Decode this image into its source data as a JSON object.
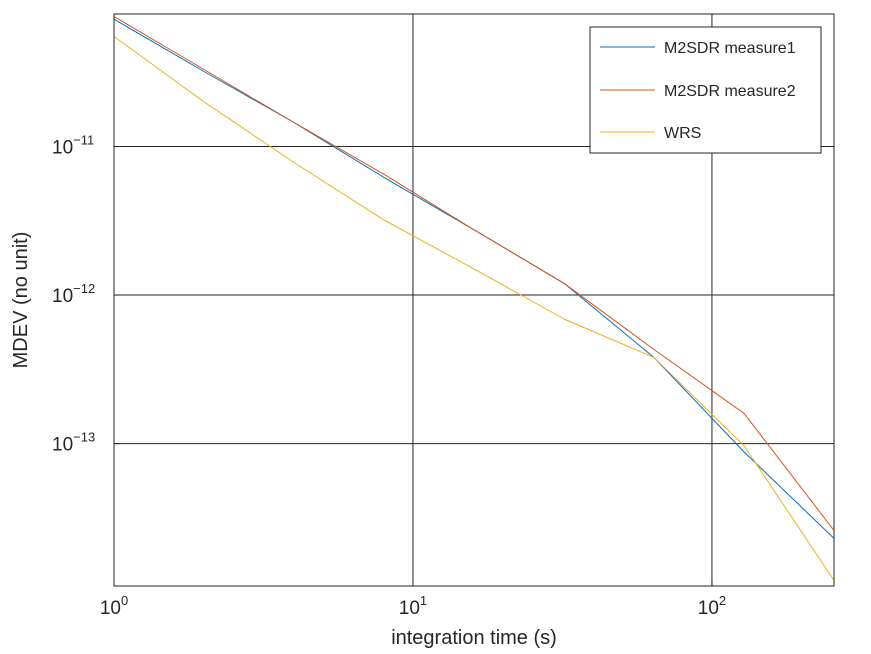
{
  "chart_data": {
    "type": "line",
    "xlabel": "integration time (s)",
    "ylabel": "MDEV (no unit)",
    "x_scale": "log",
    "y_scale": "log",
    "xlim": [
      1,
      256
    ],
    "ylim": [
      1.1e-14,
      7.8e-11
    ],
    "x_ticks": [
      {
        "value": 1,
        "base": "10",
        "exp": "0"
      },
      {
        "value": 10,
        "base": "10",
        "exp": "1"
      },
      {
        "value": 100,
        "base": "10",
        "exp": "2"
      }
    ],
    "y_ticks": [
      {
        "value": 1e-13,
        "base": "10",
        "exp": "−13"
      },
      {
        "value": 1e-12,
        "base": "10",
        "exp": "−12"
      },
      {
        "value": 1e-11,
        "base": "10",
        "exp": "−11"
      }
    ],
    "grid": true,
    "legend_position": "top-right",
    "series": [
      {
        "name": "M2SDR measure1",
        "color": "#0072bd",
        "x": [
          1,
          2,
          4,
          8,
          16,
          32,
          64,
          128,
          256
        ],
        "y": [
          7.2e-11,
          3.2e-11,
          1.45e-11,
          6.2e-12,
          2.75e-12,
          1.2e-12,
          3.8e-13,
          8.8e-14,
          2.3e-14
        ]
      },
      {
        "name": "M2SDR measure2",
        "color": "#d95319",
        "x": [
          1,
          2,
          4,
          8,
          16,
          32,
          64,
          128,
          256
        ],
        "y": [
          7.5e-11,
          3.3e-11,
          1.45e-11,
          6.5e-12,
          2.75e-12,
          1.2e-12,
          4.3e-13,
          1.6e-13,
          2.6e-14
        ]
      },
      {
        "name": "WRS",
        "color": "#edb120",
        "x": [
          1,
          2,
          4,
          8,
          16,
          32,
          64,
          128,
          256
        ],
        "y": [
          5.5e-11,
          2e-11,
          7.8e-12,
          3.2e-12,
          1.5e-12,
          6.9e-13,
          3.8e-13,
          9.7e-14,
          1.2e-14
        ]
      }
    ]
  }
}
